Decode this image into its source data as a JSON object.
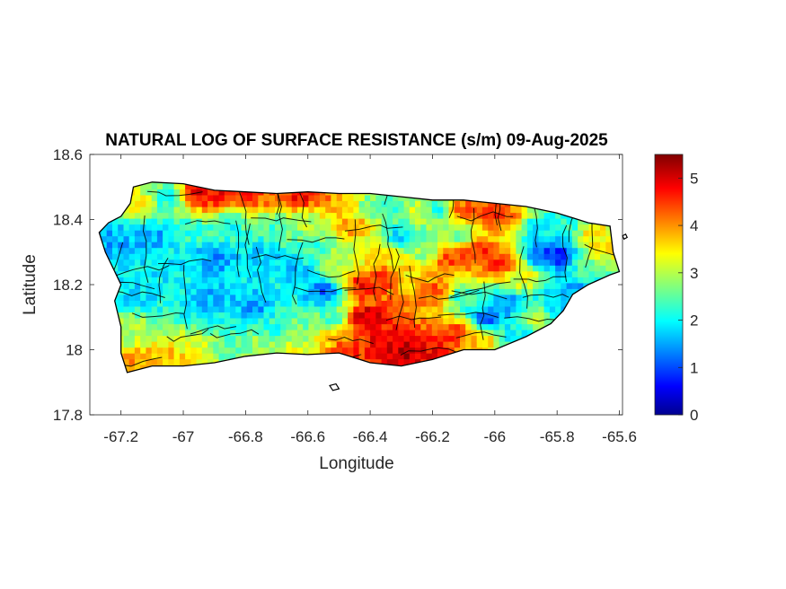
{
  "chart_data": {
    "type": "heatmap",
    "title": "NATURAL LOG OF SURFACE RESISTANCE (s/m) 09-Aug-2025",
    "xlabel": "Longitude",
    "ylabel": "Latitude",
    "xlim": [
      -67.3,
      -65.59
    ],
    "ylim": [
      17.8,
      18.6
    ],
    "xticks": [
      -67.2,
      -67,
      -66.8,
      -66.6,
      -66.4,
      -66.2,
      -66,
      -65.8,
      -65.6
    ],
    "xtick_labels": [
      "-67.2",
      "-67",
      "-66.8",
      "-66.6",
      "-66.4",
      "-66.2",
      "-66",
      "-65.8",
      "-65.6"
    ],
    "yticks": [
      17.8,
      18,
      18.2,
      18.4,
      18.6
    ],
    "ytick_labels": [
      "17.8",
      "18",
      "18.2",
      "18.4",
      "18.6"
    ],
    "colorbar": {
      "colormap": "jet",
      "clim": [
        0,
        5.5
      ],
      "ticks": [
        0,
        1,
        2,
        3,
        4,
        5
      ],
      "tick_labels": [
        "0",
        "1",
        "2",
        "3",
        "4",
        "5"
      ]
    },
    "outline": [
      [
        -67.27,
        18.36
      ],
      [
        -67.24,
        18.39
      ],
      [
        -67.2,
        18.41
      ],
      [
        -67.17,
        18.45
      ],
      [
        -67.16,
        18.5
      ],
      [
        -67.1,
        18.515
      ],
      [
        -67.0,
        18.51
      ],
      [
        -66.9,
        18.49
      ],
      [
        -66.8,
        18.485
      ],
      [
        -66.7,
        18.48
      ],
      [
        -66.6,
        18.485
      ],
      [
        -66.5,
        18.48
      ],
      [
        -66.4,
        18.48
      ],
      [
        -66.3,
        18.47
      ],
      [
        -66.2,
        18.46
      ],
      [
        -66.1,
        18.46
      ],
      [
        -66.0,
        18.45
      ],
      [
        -65.9,
        18.44
      ],
      [
        -65.8,
        18.42
      ],
      [
        -65.7,
        18.39
      ],
      [
        -65.63,
        18.38
      ],
      [
        -65.62,
        18.3
      ],
      [
        -65.6,
        18.24
      ],
      [
        -65.63,
        18.23
      ],
      [
        -65.7,
        18.2
      ],
      [
        -65.75,
        18.17
      ],
      [
        -65.78,
        18.12
      ],
      [
        -65.82,
        18.08
      ],
      [
        -65.9,
        18.04
      ],
      [
        -66.0,
        18.0
      ],
      [
        -66.1,
        18.0
      ],
      [
        -66.2,
        17.97
      ],
      [
        -66.3,
        17.95
      ],
      [
        -66.4,
        17.96
      ],
      [
        -66.5,
        17.99
      ],
      [
        -66.6,
        17.985
      ],
      [
        -66.7,
        17.99
      ],
      [
        -66.8,
        17.98
      ],
      [
        -66.9,
        17.96
      ],
      [
        -67.0,
        17.95
      ],
      [
        -67.1,
        17.95
      ],
      [
        -67.18,
        17.93
      ],
      [
        -67.2,
        17.99
      ],
      [
        -67.2,
        18.07
      ],
      [
        -67.22,
        18.15
      ],
      [
        -67.2,
        18.2
      ],
      [
        -67.25,
        18.3
      ]
    ],
    "islands": [
      [
        [
          -66.53,
          17.89
        ],
        [
          -66.51,
          17.895
        ],
        [
          -66.5,
          17.88
        ],
        [
          -66.52,
          17.875
        ]
      ],
      [
        [
          -65.59,
          18.35
        ],
        [
          -65.58,
          18.355
        ],
        [
          -65.575,
          18.345
        ],
        [
          -65.585,
          18.34
        ]
      ]
    ],
    "anchors": [
      [
        -67.23,
        18.34,
        1.6
      ],
      [
        -67.15,
        18.45,
        3.6
      ],
      [
        -67.05,
        18.47,
        2.2
      ],
      [
        -66.95,
        18.48,
        4.9
      ],
      [
        -66.88,
        18.47,
        4.8
      ],
      [
        -66.8,
        18.48,
        4.7
      ],
      [
        -66.72,
        18.47,
        4.3
      ],
      [
        -66.62,
        18.47,
        4.8
      ],
      [
        -66.55,
        18.46,
        4.2
      ],
      [
        -66.48,
        18.45,
        3.6
      ],
      [
        -66.4,
        18.44,
        2.6
      ],
      [
        -66.32,
        18.45,
        2.3
      ],
      [
        -66.25,
        18.43,
        3.2
      ],
      [
        -66.18,
        18.43,
        2.2
      ],
      [
        -66.1,
        18.43,
        4.4
      ],
      [
        -66.0,
        18.42,
        4.6
      ],
      [
        -65.95,
        18.4,
        4.2
      ],
      [
        -65.88,
        18.38,
        2.0
      ],
      [
        -65.78,
        18.38,
        2.2
      ],
      [
        -65.68,
        18.35,
        3.6
      ],
      [
        -65.65,
        18.3,
        3.5
      ],
      [
        -65.72,
        18.26,
        2.4
      ],
      [
        -65.79,
        18.29,
        0.7
      ],
      [
        -65.85,
        18.3,
        1.1
      ],
      [
        -65.9,
        18.22,
        3.3
      ],
      [
        -65.98,
        18.27,
        4.6
      ],
      [
        -66.05,
        18.3,
        4.7
      ],
      [
        -66.12,
        18.36,
        2.6
      ],
      [
        -66.15,
        18.28,
        4.5
      ],
      [
        -66.22,
        18.3,
        2.8
      ],
      [
        -66.3,
        18.35,
        1.9
      ],
      [
        -66.38,
        18.3,
        3.5
      ],
      [
        -66.45,
        18.38,
        4.0
      ],
      [
        -66.42,
        18.2,
        4.8
      ],
      [
        -66.35,
        18.22,
        4.5
      ],
      [
        -66.28,
        18.22,
        3.5
      ],
      [
        -66.2,
        18.18,
        4.4
      ],
      [
        -66.1,
        18.16,
        2.3
      ],
      [
        -66.02,
        18.1,
        1.1
      ],
      [
        -65.96,
        18.14,
        1.5
      ],
      [
        -65.88,
        18.1,
        3.0
      ],
      [
        -65.8,
        18.15,
        1.8
      ],
      [
        -65.75,
        18.18,
        1.6
      ],
      [
        -65.93,
        18.05,
        2.0
      ],
      [
        -66.05,
        18.03,
        3.8
      ],
      [
        -66.12,
        18.05,
        4.6
      ],
      [
        -66.2,
        18.0,
        4.8
      ],
      [
        -66.28,
        18.0,
        5.2
      ],
      [
        -66.35,
        18.02,
        5.0
      ],
      [
        -66.42,
        18.1,
        5.2
      ],
      [
        -66.48,
        18.0,
        4.7
      ],
      [
        -66.52,
        18.1,
        2.4
      ],
      [
        -66.55,
        18.18,
        1.2
      ],
      [
        -66.6,
        18.05,
        2.6
      ],
      [
        -66.7,
        18.07,
        2.3
      ],
      [
        -66.78,
        18.13,
        1.5
      ],
      [
        -66.85,
        18.1,
        2.1
      ],
      [
        -66.92,
        18.15,
        1.6
      ],
      [
        -67.0,
        18.2,
        2.1
      ],
      [
        -67.08,
        18.25,
        2.0
      ],
      [
        -67.15,
        18.18,
        1.9
      ],
      [
        -67.18,
        18.05,
        3.0
      ],
      [
        -67.15,
        17.96,
        4.0
      ],
      [
        -67.05,
        17.97,
        3.8
      ],
      [
        -66.95,
        17.99,
        3.4
      ],
      [
        -66.85,
        18.0,
        2.6
      ],
      [
        -66.75,
        18.02,
        2.9
      ],
      [
        -66.65,
        18.0,
        3.3
      ],
      [
        -66.55,
        18.03,
        3.7
      ],
      [
        -66.9,
        18.28,
        1.5
      ],
      [
        -66.75,
        18.3,
        1.8
      ],
      [
        -66.65,
        18.25,
        1.7
      ],
      [
        -66.58,
        18.32,
        2.4
      ],
      [
        -66.5,
        18.28,
        3.0
      ],
      [
        -67.1,
        18.35,
        1.6
      ],
      [
        -66.98,
        18.36,
        2.3
      ],
      [
        -66.85,
        18.4,
        2.1
      ],
      [
        -66.7,
        18.38,
        2.4
      ],
      [
        -66.6,
        18.4,
        3.0
      ]
    ]
  }
}
